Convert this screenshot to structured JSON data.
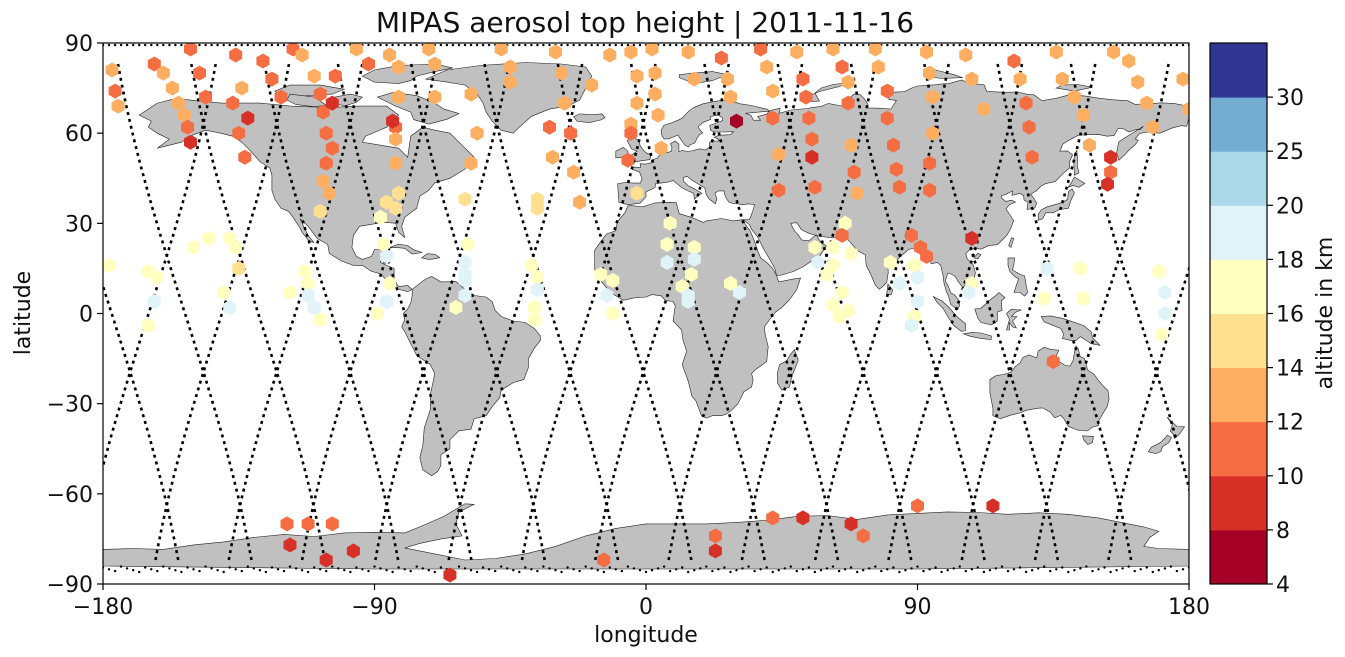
{
  "chart_data": {
    "type": "scatter",
    "title": "MIPAS aerosol top height | 2011-11-16",
    "xlabel": "longitude",
    "ylabel": "latitude",
    "xlim": [
      -180,
      180
    ],
    "ylim": [
      -90,
      90
    ],
    "x_ticks": [
      "−180",
      "−90",
      "0",
      "90",
      "180"
    ],
    "y_ticks": [
      "90",
      "60",
      "30",
      "0",
      "−30",
      "−60",
      "−90"
    ],
    "colorbar": {
      "label": "altitude in km",
      "boundaries": [
        4,
        8,
        10,
        12,
        14,
        16,
        18,
        20,
        25,
        30
      ],
      "tick_labels": [
        "4",
        "8",
        "10",
        "12",
        "14",
        "16",
        "18",
        "20",
        "25",
        "30"
      ],
      "colors": [
        "#a50026",
        "#d73027",
        "#f46d43",
        "#fdae61",
        "#fee090",
        "#ffffbf",
        "#e0f3f8",
        "#abd9e9",
        "#74add1",
        "#313695"
      ]
    },
    "land_color": "#c0c0c0",
    "observations": [
      [
        -176,
        74,
        11.5
      ],
      [
        -177,
        81,
        13
      ],
      [
        -175,
        69,
        12
      ],
      [
        -163,
        83,
        11
      ],
      [
        -160,
        80,
        12
      ],
      [
        -157,
        75,
        13
      ],
      [
        -155,
        70,
        13
      ],
      [
        -153,
        66,
        12
      ],
      [
        -152,
        62,
        11
      ],
      [
        -151,
        57,
        9
      ],
      [
        -151,
        88,
        11
      ],
      [
        -148,
        80,
        11
      ],
      [
        -146,
        72,
        11
      ],
      [
        -136,
        86,
        11
      ],
      [
        -137,
        70,
        11
      ],
      [
        -135,
        60,
        11
      ],
      [
        -133,
        52,
        11
      ],
      [
        -134,
        75,
        12
      ],
      [
        -132,
        65,
        9.5
      ],
      [
        -127,
        84,
        11
      ],
      [
        -124,
        78,
        11
      ],
      [
        -121,
        72,
        11
      ],
      [
        -117,
        88,
        11
      ],
      [
        -114,
        86,
        12
      ],
      [
        -110,
        79,
        12
      ],
      [
        -108,
        73,
        11
      ],
      [
        -107,
        67,
        11
      ],
      [
        -106,
        60,
        11
      ],
      [
        -106,
        50,
        11
      ],
      [
        -107,
        44,
        13
      ],
      [
        -108,
        34,
        15
      ],
      [
        -103,
        79,
        11
      ],
      [
        -104,
        70,
        9.5
      ],
      [
        -104,
        55,
        11
      ],
      [
        -105,
        40,
        12
      ],
      [
        -96,
        88,
        12
      ],
      [
        -92,
        83,
        11
      ],
      [
        -85,
        86,
        12
      ],
      [
        -82,
        82,
        13
      ],
      [
        -82,
        72,
        13
      ],
      [
        -83,
        62,
        11
      ],
      [
        -83,
        58,
        13
      ],
      [
        -83,
        50,
        13
      ],
      [
        -82,
        40,
        15
      ],
      [
        -83,
        35,
        15
      ],
      [
        -84,
        64,
        9.5
      ],
      [
        -72,
        88,
        12
      ],
      [
        -70,
        83,
        13
      ],
      [
        -70,
        72,
        12
      ],
      [
        -58,
        73,
        12
      ],
      [
        -56,
        60,
        13
      ],
      [
        -58,
        50,
        12
      ],
      [
        -60,
        38,
        15
      ],
      [
        -48,
        88,
        12
      ],
      [
        -45,
        82,
        12
      ],
      [
        -45,
        77,
        13
      ],
      [
        -30,
        87,
        13
      ],
      [
        -28,
        80,
        12
      ],
      [
        -27,
        70,
        12
      ],
      [
        -25,
        60,
        11
      ],
      [
        -24,
        47,
        13
      ],
      [
        -22,
        37,
        13
      ],
      [
        -32,
        62,
        11
      ],
      [
        -31,
        52,
        13
      ],
      [
        -18,
        76,
        13
      ],
      [
        -12,
        86,
        12
      ],
      [
        -5,
        87,
        12
      ],
      [
        -3,
        79,
        12
      ],
      [
        -3,
        70,
        13
      ],
      [
        -5,
        63,
        13
      ],
      [
        -6,
        51,
        11
      ],
      [
        -3,
        40,
        15
      ],
      [
        -5,
        60,
        11
      ],
      [
        2,
        88,
        12
      ],
      [
        3,
        80,
        12
      ],
      [
        3,
        73,
        12
      ],
      [
        4,
        66,
        13
      ],
      [
        5,
        55,
        13
      ],
      [
        14,
        87,
        12
      ],
      [
        16,
        78,
        12
      ],
      [
        25,
        85,
        11
      ],
      [
        27,
        78,
        13
      ],
      [
        28,
        72,
        13
      ],
      [
        30,
        64,
        5
      ],
      [
        38,
        88,
        11
      ],
      [
        40,
        82,
        12
      ],
      [
        42,
        74,
        13
      ],
      [
        42,
        65,
        11
      ],
      [
        44,
        53,
        13
      ],
      [
        44,
        41,
        11
      ],
      [
        50,
        87,
        12
      ],
      [
        52,
        78,
        11
      ],
      [
        53,
        72,
        11
      ],
      [
        54,
        65,
        11
      ],
      [
        55,
        58,
        11
      ],
      [
        55,
        52,
        9.5
      ],
      [
        56,
        42,
        11
      ],
      [
        62,
        88,
        12
      ],
      [
        65,
        82,
        11
      ],
      [
        67,
        77,
        13
      ],
      [
        67,
        70,
        11
      ],
      [
        68,
        56,
        12
      ],
      [
        69,
        47,
        11
      ],
      [
        70,
        40,
        13
      ],
      [
        76,
        88,
        12
      ],
      [
        77,
        82,
        12
      ],
      [
        80,
        74,
        11
      ],
      [
        80,
        65,
        11
      ],
      [
        82,
        56,
        11
      ],
      [
        83,
        48,
        11
      ],
      [
        84,
        42,
        11
      ],
      [
        93,
        87,
        12
      ],
      [
        94,
        80,
        12
      ],
      [
        95,
        72,
        13
      ],
      [
        95,
        60,
        12
      ],
      [
        94,
        50,
        11
      ],
      [
        94,
        41,
        11
      ],
      [
        106,
        86,
        12
      ],
      [
        108,
        78,
        12
      ],
      [
        112,
        68,
        12
      ],
      [
        122,
        84,
        11
      ],
      [
        124,
        78,
        12
      ],
      [
        126,
        70,
        11
      ],
      [
        127,
        62,
        11
      ],
      [
        128,
        52,
        11
      ],
      [
        136,
        87,
        12
      ],
      [
        138,
        78,
        13
      ],
      [
        142,
        72,
        13
      ],
      [
        145,
        66,
        12
      ],
      [
        147,
        56,
        12
      ],
      [
        155,
        87,
        12
      ],
      [
        160,
        84,
        12
      ],
      [
        163,
        77,
        12
      ],
      [
        166,
        70,
        12
      ],
      [
        168,
        62,
        12
      ],
      [
        178,
        78,
        13
      ],
      [
        180,
        68,
        13
      ],
      [
        -178,
        16,
        17
      ],
      [
        -165,
        14,
        17
      ],
      [
        -162,
        12,
        17
      ],
      [
        -163,
        4,
        18
      ],
      [
        -165,
        -4,
        17
      ],
      [
        -150,
        22,
        17
      ],
      [
        -145,
        25,
        17
      ],
      [
        -138,
        25,
        17
      ],
      [
        -136,
        22,
        17
      ],
      [
        -135,
        15,
        15
      ],
      [
        -140,
        7,
        17
      ],
      [
        -138,
        2,
        18
      ],
      [
        -113,
        14,
        17
      ],
      [
        -112,
        10,
        17
      ],
      [
        -112,
        6,
        18
      ],
      [
        -110,
        2,
        18
      ],
      [
        -108,
        -2,
        17
      ],
      [
        -118,
        7,
        17
      ],
      [
        -87,
        23,
        17
      ],
      [
        -86,
        19,
        18
      ],
      [
        -85,
        10,
        17
      ],
      [
        -86,
        4,
        18
      ],
      [
        -89,
        0,
        17
      ],
      [
        -88,
        32,
        17
      ],
      [
        -86,
        37,
        15
      ],
      [
        -59,
        23,
        17
      ],
      [
        -60,
        17,
        18
      ],
      [
        -60,
        11,
        18
      ],
      [
        -60,
        6,
        18
      ],
      [
        -63,
        2,
        17
      ],
      [
        -60,
        13,
        18
      ],
      [
        -38,
        16,
        17
      ],
      [
        -36,
        12,
        17
      ],
      [
        -36,
        8,
        18
      ],
      [
        -37,
        2,
        17
      ],
      [
        -37,
        -2,
        17
      ],
      [
        -36,
        35,
        15
      ],
      [
        -36,
        38,
        15
      ],
      [
        -15,
        13,
        17
      ],
      [
        -13,
        6,
        18
      ],
      [
        -11,
        0,
        17
      ],
      [
        -11,
        11,
        17
      ],
      [
        8,
        30,
        17
      ],
      [
        7,
        23,
        17
      ],
      [
        7,
        17,
        18
      ],
      [
        12,
        9,
        17
      ],
      [
        16,
        22,
        17
      ],
      [
        16,
        18,
        18
      ],
      [
        15,
        13,
        17
      ],
      [
        14,
        6,
        18
      ],
      [
        14,
        4,
        18
      ],
      [
        31,
        7,
        18
      ],
      [
        28,
        10,
        17
      ],
      [
        56,
        22,
        17
      ],
      [
        57,
        17,
        18
      ],
      [
        60,
        13,
        17
      ],
      [
        62,
        3,
        17
      ],
      [
        62,
        16,
        17
      ],
      [
        65,
        7,
        17
      ],
      [
        64,
        -1,
        17
      ],
      [
        67,
        1,
        17
      ],
      [
        66,
        30,
        17
      ],
      [
        65,
        26,
        11
      ],
      [
        62,
        22,
        17
      ],
      [
        68,
        20,
        17
      ],
      [
        81,
        17,
        17
      ],
      [
        84,
        10,
        18
      ],
      [
        89,
        16,
        17
      ],
      [
        90,
        12,
        18
      ],
      [
        90,
        4,
        18
      ],
      [
        89,
        -1,
        17
      ],
      [
        88,
        -4,
        18
      ],
      [
        93,
        19,
        11
      ],
      [
        91,
        22,
        11
      ],
      [
        108,
        25,
        9.5
      ],
      [
        108,
        10,
        17
      ],
      [
        107,
        7,
        18
      ],
      [
        133,
        15,
        18
      ],
      [
        132,
        5,
        17
      ],
      [
        144,
        15,
        17
      ],
      [
        145,
        5,
        17
      ],
      [
        170,
        14,
        17
      ],
      [
        172,
        7,
        18
      ],
      [
        172,
        0,
        18
      ],
      [
        171,
        -7,
        17
      ],
      [
        -112,
        -70,
        11
      ],
      [
        -118,
        -77,
        9.5
      ],
      [
        -106,
        -82,
        9.5
      ],
      [
        -97,
        -79,
        9.5
      ],
      [
        -119,
        -70,
        11
      ],
      [
        -104,
        -70,
        11
      ],
      [
        -65,
        -87,
        9.5
      ],
      [
        -14,
        -82,
        11
      ],
      [
        23,
        -79,
        9.5
      ],
      [
        23,
        -74,
        11
      ],
      [
        42,
        -68,
        11
      ],
      [
        52,
        -68,
        9.5
      ],
      [
        68,
        -70,
        9.5
      ],
      [
        72,
        -74,
        11
      ],
      [
        90,
        -64,
        11
      ],
      [
        115,
        -64,
        9.5
      ],
      [
        135,
        -16,
        11
      ],
      [
        154,
        52,
        9.5
      ],
      [
        154,
        47,
        11
      ],
      [
        153,
        43,
        9.5
      ],
      [
        88,
        26,
        11
      ]
    ]
  }
}
